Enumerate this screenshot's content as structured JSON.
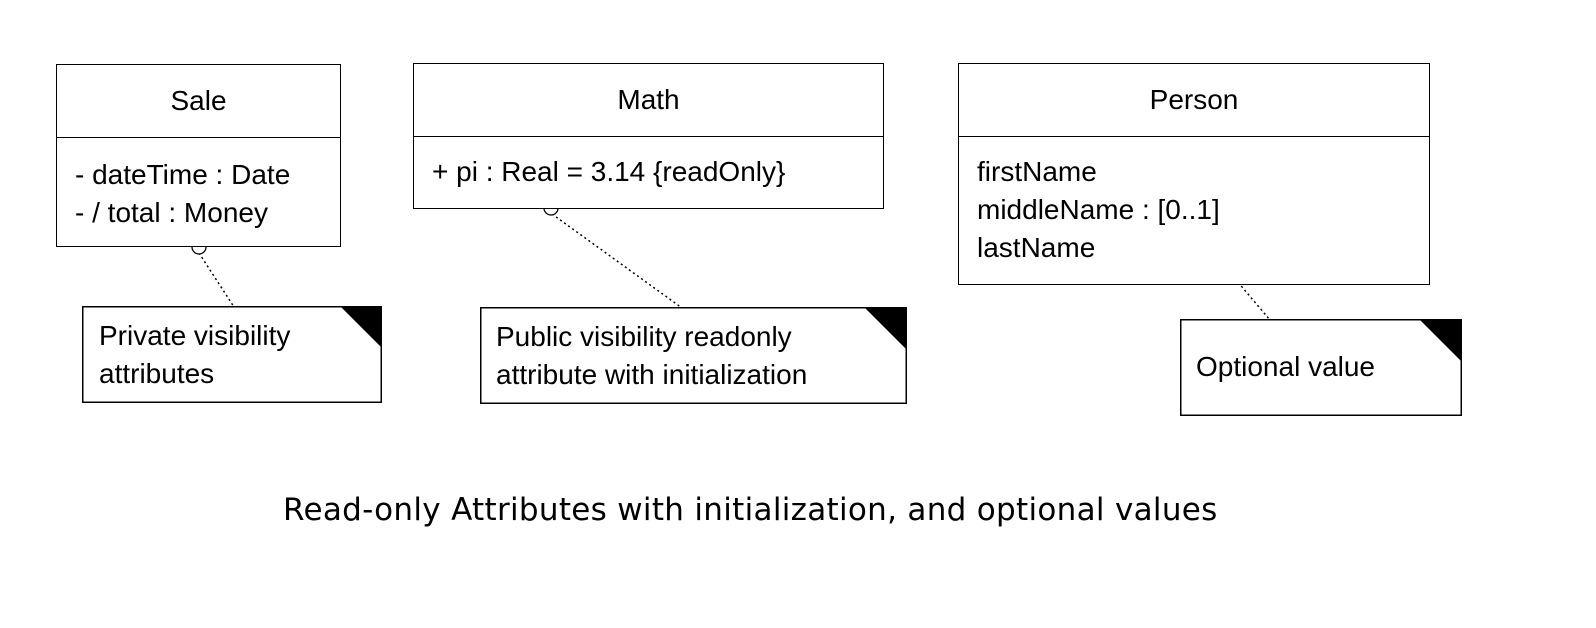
{
  "classes": {
    "sale": {
      "name": "Sale",
      "attributes": [
        "- dateTime : Date",
        "- / total : Money"
      ]
    },
    "math": {
      "name": "Math",
      "attributes": [
        "+ pi : Real = 3.14 {readOnly}"
      ]
    },
    "person": {
      "name": "Person",
      "attributes": [
        "firstName",
        "middleName : [0..1]",
        "lastName"
      ]
    }
  },
  "notes": {
    "sale_note": {
      "lines": [
        "Private visibility",
        "attributes"
      ]
    },
    "math_note": {
      "lines": [
        "Public visibility readonly",
        "attribute with initialization"
      ]
    },
    "person_note": {
      "lines": [
        "Optional value"
      ]
    }
  },
  "caption": "Read-only Attributes with initialization, and optional values"
}
